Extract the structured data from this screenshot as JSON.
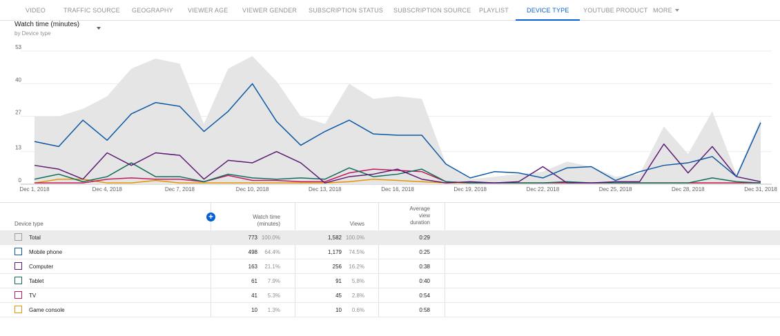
{
  "tabs": [
    {
      "label": "VIDEO"
    },
    {
      "label": "TRAFFIC SOURCE"
    },
    {
      "label": "GEOGRAPHY"
    },
    {
      "label": "VIEWER AGE"
    },
    {
      "label": "VIEWER GENDER"
    },
    {
      "label": "SUBSCRIPTION STATUS"
    },
    {
      "label": "SUBSCRIPTION SOURCE"
    },
    {
      "label": "PLAYLIST"
    },
    {
      "label": "DEVICE TYPE"
    },
    {
      "label": "YOUTUBE PRODUCT"
    },
    {
      "label": "MORE"
    }
  ],
  "active_tab": "DEVICE TYPE",
  "metric": {
    "title": "Watch time (minutes)",
    "subtitle": "by Device type"
  },
  "colors": {
    "accent": "#065fd4",
    "total_area": "#e5e5e5",
    "mobile": "#0b57a4",
    "computer": "#5c1a74",
    "tablet": "#0f6b5a",
    "tv": "#c2185b",
    "game_console": "#e69500"
  },
  "chart_data": {
    "type": "line",
    "x": [
      "Dec 1, 2018",
      "Dec 2, 2018",
      "Dec 3, 2018",
      "Dec 4, 2018",
      "Dec 5, 2018",
      "Dec 6, 2018",
      "Dec 7, 2018",
      "Dec 8, 2018",
      "Dec 9, 2018",
      "Dec 10, 2018",
      "Dec 11, 2018",
      "Dec 12, 2018",
      "Dec 13, 2018",
      "Dec 14, 2018",
      "Dec 15, 2018",
      "Dec 16, 2018",
      "Dec 17, 2018",
      "Dec 18, 2018",
      "Dec 19, 2018",
      "Dec 20, 2018",
      "Dec 21, 2018",
      "Dec 22, 2018",
      "Dec 23, 2018",
      "Dec 24, 2018",
      "Dec 25, 2018",
      "Dec 26, 2018",
      "Dec 27, 2018",
      "Dec 28, 2018",
      "Dec 29, 2018",
      "Dec 30, 2018",
      "Dec 31, 2018"
    ],
    "x_tick_labels": [
      "Dec 1, 2018",
      "Dec 4, 2018",
      "Dec 7, 2018",
      "Dec 10, 2018",
      "Dec 13, 2018",
      "Dec 16, 2018",
      "Dec 19, 2018",
      "Dec 22, 2018",
      "Dec 25, 2018",
      "Dec 28, 2018",
      "Dec 31, 2018"
    ],
    "x_tick_indices": [
      0,
      3,
      6,
      9,
      12,
      15,
      18,
      21,
      24,
      27,
      30
    ],
    "y_ticks": [
      0,
      13,
      27,
      40,
      53
    ],
    "ylim": [
      0,
      53
    ],
    "grid": true,
    "total_area": {
      "values": [
        27,
        27,
        30,
        35,
        46,
        50,
        48,
        24,
        46,
        51,
        41,
        27,
        24,
        40,
        34,
        35,
        34,
        8,
        2,
        3,
        4,
        5,
        9,
        7,
        3,
        4,
        23,
        12,
        29,
        4,
        26
      ],
      "color": "#e5e5e5"
    },
    "series": [
      {
        "name": "Mobile phone",
        "color": "#0b57a4",
        "values": [
          17,
          15,
          25.5,
          17.5,
          28,
          32.5,
          31,
          21,
          29,
          40,
          25,
          15.5,
          21,
          25.5,
          20,
          19.5,
          19.5,
          8,
          2.5,
          5,
          4.5,
          2.5,
          6.5,
          7,
          1.5,
          5,
          7.5,
          8.5,
          11,
          3,
          24.5
        ]
      },
      {
        "name": "Computer",
        "color": "#5c1a74",
        "values": [
          7.5,
          6,
          2,
          12.5,
          7.5,
          12.5,
          11.5,
          2,
          9.5,
          8.5,
          13,
          8.5,
          0.5,
          3,
          4,
          6,
          2,
          0.5,
          1,
          0.5,
          1,
          7,
          0.5,
          0.5,
          1,
          1,
          16,
          4.5,
          15,
          3,
          1
        ]
      },
      {
        "name": "Tablet",
        "color": "#0f6b5a",
        "values": [
          2,
          4,
          1,
          3,
          8.5,
          3,
          3,
          1,
          4,
          2.5,
          2,
          2.5,
          2,
          6.5,
          3,
          4,
          6,
          1,
          0.5,
          0.5,
          0.5,
          0.5,
          1,
          0.5,
          0.5,
          0.5,
          0.5,
          0.5,
          2.5,
          1,
          0.5
        ]
      },
      {
        "name": "TV",
        "color": "#c2185b",
        "values": [
          0.5,
          0.5,
          0.5,
          2,
          2.5,
          2,
          2,
          1,
          3.5,
          1.5,
          1.5,
          1,
          1,
          4.5,
          6,
          5.5,
          5,
          1,
          0.5,
          0.5,
          0.5,
          0.5,
          0.5,
          0.5,
          0.5,
          0.5,
          0.5,
          0.5,
          0.5,
          0.5,
          0.5
        ]
      },
      {
        "name": "Game console",
        "color": "#e69500",
        "values": [
          0.5,
          2,
          2,
          0.5,
          0.5,
          1.5,
          0.5,
          0.5,
          0.5,
          0.5,
          0.5,
          0.5,
          0.5,
          1,
          2,
          1.5,
          1,
          0.5,
          0.5,
          0.5,
          0.5,
          0.5,
          0.5,
          0.5,
          0.5,
          0.5,
          0.5,
          0.5,
          0.5,
          0.5,
          0.5
        ]
      }
    ]
  },
  "table": {
    "add_label": "+",
    "headers": {
      "device_type": "Device type",
      "watch_time_1": "Watch time",
      "watch_time_2": "(minutes)",
      "views": "Views",
      "avg_1": "Average",
      "avg_2": "view",
      "avg_3": "duration"
    },
    "rows": [
      {
        "name": "Total",
        "watch": "773",
        "watch_pct": "100.0%",
        "views": "1,582",
        "views_pct": "100.0%",
        "avg": "0:29",
        "color": "#9e9e9e"
      },
      {
        "name": "Mobile phone",
        "watch": "498",
        "watch_pct": "64.4%",
        "views": "1,179",
        "views_pct": "74.5%",
        "avg": "0:25",
        "color": "#0b57a4"
      },
      {
        "name": "Computer",
        "watch": "163",
        "watch_pct": "21.1%",
        "views": "256",
        "views_pct": "16.2%",
        "avg": "0:38",
        "color": "#5c1a74"
      },
      {
        "name": "Tablet",
        "watch": "61",
        "watch_pct": "7.9%",
        "views": "91",
        "views_pct": "5.8%",
        "avg": "0:40",
        "color": "#0f6b5a"
      },
      {
        "name": "TV",
        "watch": "41",
        "watch_pct": "5.3%",
        "views": "45",
        "views_pct": "2.8%",
        "avg": "0:54",
        "color": "#c2185b"
      },
      {
        "name": "Game console",
        "watch": "10",
        "watch_pct": "1.3%",
        "views": "10",
        "views_pct": "0.6%",
        "avg": "0:58",
        "color": "#e69500"
      }
    ]
  }
}
